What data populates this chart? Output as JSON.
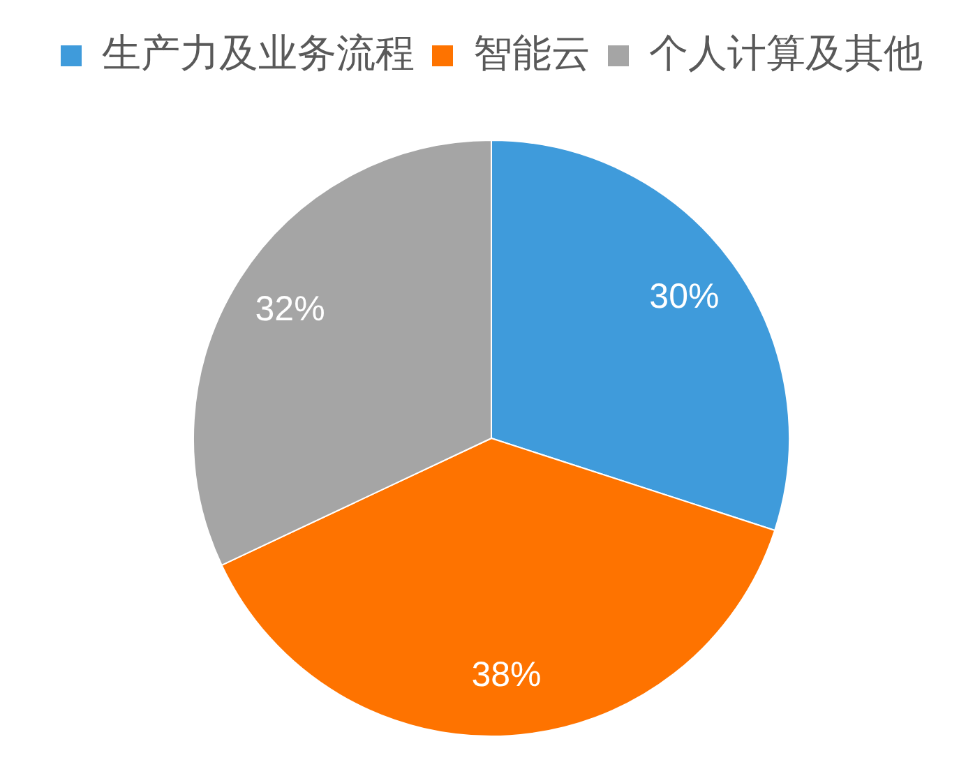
{
  "chart_data": {
    "type": "pie",
    "categories": [
      "生产力及业务流程",
      "智能云",
      "个人计算及其他"
    ],
    "values": [
      30,
      38,
      32
    ],
    "colors": [
      "#3f9bdb",
      "#fe7300",
      "#a5a5a5"
    ],
    "value_labels": [
      "30%",
      "38%",
      "32%"
    ],
    "legend": "top"
  }
}
